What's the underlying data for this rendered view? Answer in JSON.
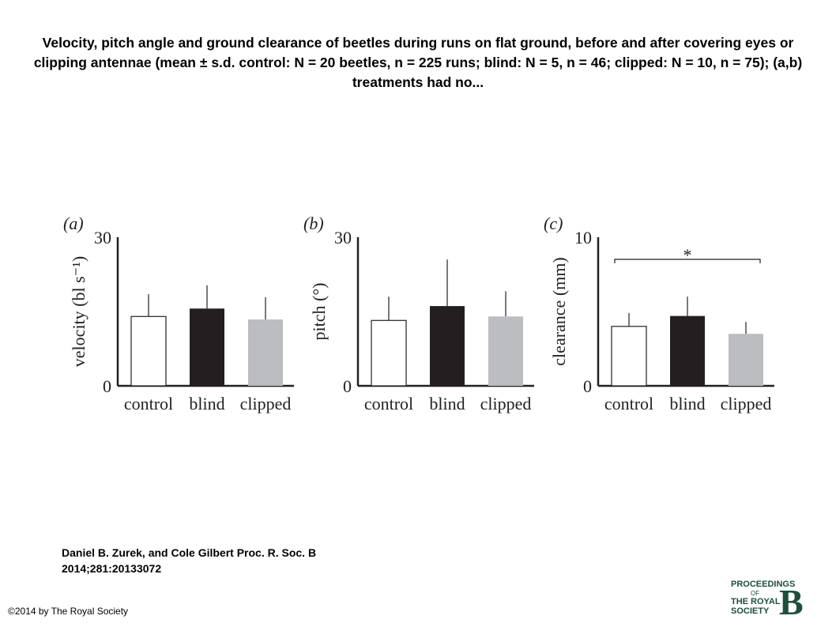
{
  "title": "Velocity, pitch angle and ground clearance of beetles during runs on flat ground, before and after covering eyes or clipping antennae (mean ± s.d. control: N = 20 beetles, n = 225 runs; blind: N = 5, n = 46; clipped: N = 10, n = 75); (a,b) treatments had no...",
  "chart_data": [
    {
      "type": "bar",
      "panel": "(a)",
      "ylabel": "velocity (bl s⁻¹)",
      "categories": [
        "control",
        "blind",
        "clipped"
      ],
      "values": [
        14.0,
        15.6,
        13.4
      ],
      "errors": [
        4.5,
        4.7,
        4.5
      ],
      "colors": [
        "#ffffff",
        "#231f20",
        "#bcbdc0"
      ],
      "ylim": [
        0,
        30
      ],
      "yticks": [
        0,
        30
      ]
    },
    {
      "type": "bar",
      "panel": "(b)",
      "ylabel": "pitch (°)",
      "categories": [
        "control",
        "blind",
        "clipped"
      ],
      "values": [
        13.2,
        16.1,
        14.0
      ],
      "errors": [
        4.8,
        9.4,
        5.1
      ],
      "colors": [
        "#ffffff",
        "#231f20",
        "#bcbdc0"
      ],
      "ylim": [
        0,
        30
      ],
      "yticks": [
        0,
        30
      ]
    },
    {
      "type": "bar",
      "panel": "(c)",
      "ylabel": "clearance (mm)",
      "categories": [
        "control",
        "blind",
        "clipped"
      ],
      "values": [
        4.0,
        4.7,
        3.5
      ],
      "errors": [
        0.9,
        1.3,
        0.8
      ],
      "colors": [
        "#ffffff",
        "#231f20",
        "#bcbdc0"
      ],
      "ylim": [
        0,
        10
      ],
      "yticks": [
        0,
        10
      ],
      "annotations": [
        {
          "text": "*",
          "between": [
            "control",
            "clipped"
          ]
        }
      ]
    }
  ],
  "citation": "Daniel B. Zurek, and Cole Gilbert Proc. R. Soc. B 2014;281:20133072",
  "copyright": "©2014 by The Royal Society",
  "logo": {
    "lines": [
      "PROCEEDINGS",
      "OF",
      "THE ROYAL",
      "SOCIETY"
    ],
    "letter": "B"
  }
}
